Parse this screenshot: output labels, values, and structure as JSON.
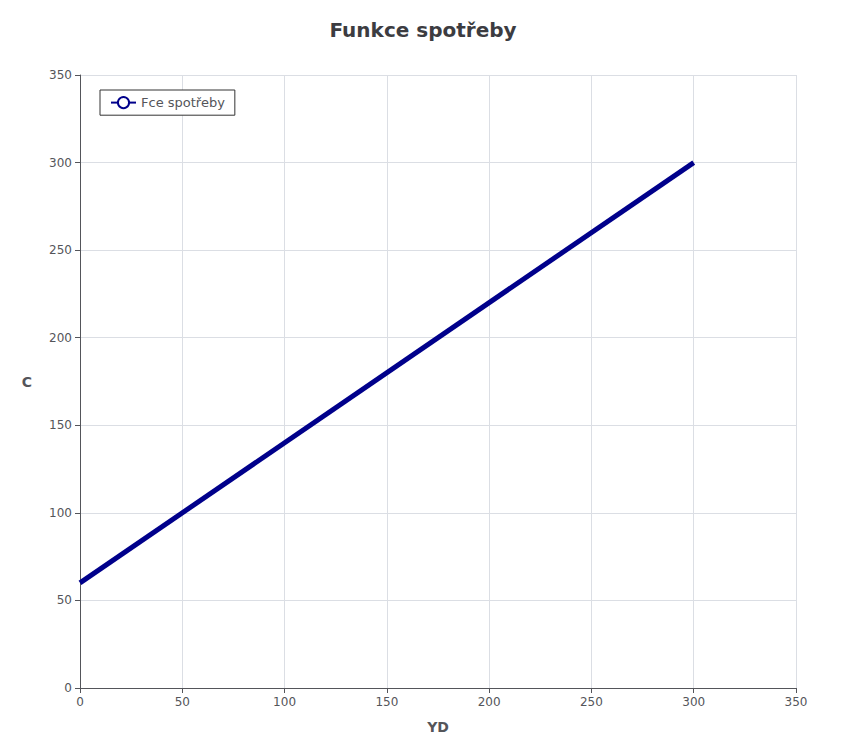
{
  "chart_data": {
    "type": "line",
    "title": "Funkce spotřeby",
    "xlabel": "YD",
    "ylabel": "C",
    "x": [
      0,
      300
    ],
    "series": [
      {
        "name": "Fce spotřeby",
        "color": "#00008B",
        "values": [
          60,
          300
        ]
      }
    ],
    "xlim": [
      0,
      350
    ],
    "ylim": [
      0,
      350
    ],
    "xticks": [
      0,
      50,
      100,
      150,
      200,
      250,
      300,
      350
    ],
    "yticks": [
      0,
      50,
      100,
      150,
      200,
      250,
      300,
      350
    ],
    "grid": true,
    "legend": "upper left"
  }
}
